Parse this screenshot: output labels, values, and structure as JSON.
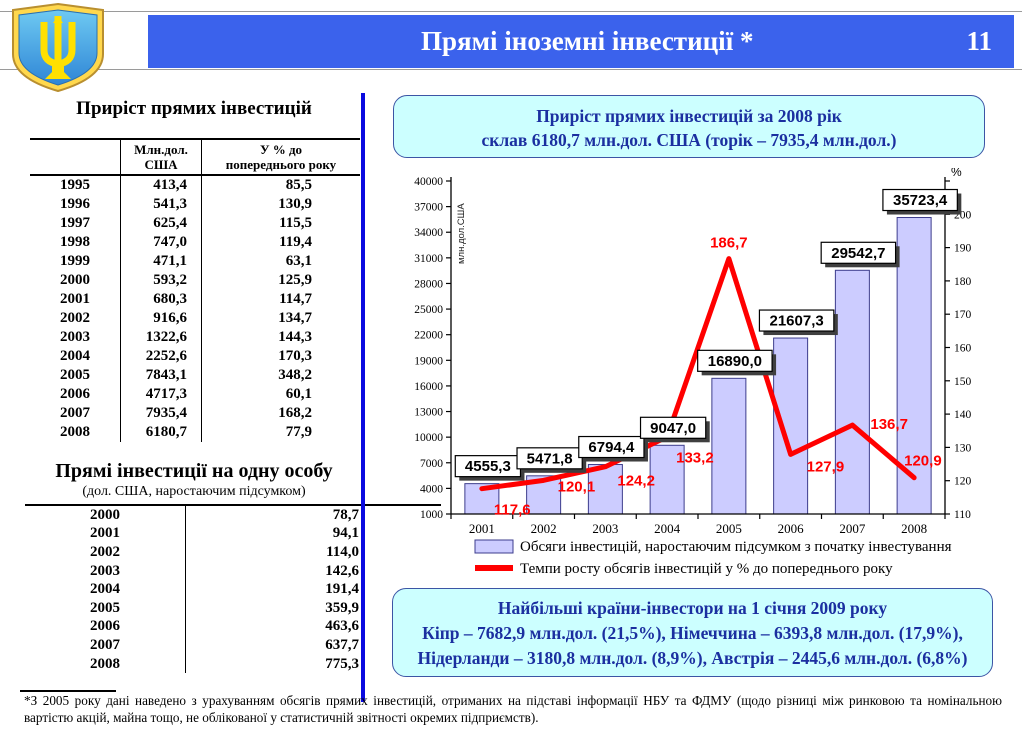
{
  "header": {
    "title": "Прямі іноземні інвестиції *",
    "page_number": "11",
    "bar_color": "#3b62ec"
  },
  "emblem": {
    "name": "coat-of-arms-of-ukraine"
  },
  "left_panel": {
    "table1": {
      "title": "Приріст прямих інвестицій",
      "col_headers": {
        "mln": [
          "Млн.дол.",
          "США"
        ],
        "pct": [
          "У % до",
          "попереднього року"
        ]
      },
      "rows": [
        [
          "1995",
          "413,4",
          "85,5"
        ],
        [
          "1996",
          "541,3",
          "130,9"
        ],
        [
          "1997",
          "625,4",
          "115,5"
        ],
        [
          "1998",
          "747,0",
          "119,4"
        ],
        [
          "1999",
          "471,1",
          "63,1"
        ],
        [
          "2000",
          "593,2",
          "125,9"
        ],
        [
          "2001",
          "680,3",
          "114,7"
        ],
        [
          "2002",
          "916,6",
          "134,7"
        ],
        [
          "2003",
          "1322,6",
          "144,3"
        ],
        [
          "2004",
          "2252,6",
          "170,3"
        ],
        [
          "2005",
          "7843,1",
          "348,2"
        ],
        [
          "2006",
          "4717,3",
          "60,1"
        ],
        [
          "2007",
          "7935,4",
          "168,2"
        ],
        [
          "2008",
          "6180,7",
          "77,9"
        ]
      ]
    },
    "table2": {
      "title": "Прямі інвестиції на одну особу",
      "subtitle": "(дол. США, наростаючим підсумком)",
      "rows": [
        [
          "2000",
          "78,7"
        ],
        [
          "2001",
          "94,1"
        ],
        [
          "2002",
          "114,0"
        ],
        [
          "2003",
          "142,6"
        ],
        [
          "2004",
          "191,4"
        ],
        [
          "2005",
          "359,9"
        ],
        [
          "2006",
          "463,6"
        ],
        [
          "2007",
          "637,7"
        ],
        [
          "2008",
          "775,3"
        ]
      ]
    }
  },
  "right_panel": {
    "info_box_top": {
      "lines": [
        "Приріст прямих інвестицій за 2008 рік",
        "склав 6180,7 млн.дол. США (торік – 7935,4 млн.дол.)"
      ]
    },
    "info_box_bottom": {
      "lines": [
        "Найбільші країни-інвестори на 1 січня 2009 року",
        "Кіпр – 7682,9 млн.дол. (21,5%), Німеччина – 6393,8 млн.дол. (17,9%),",
        "Нідерланди – 3180,8 млн.дол. (8,9%), Австрія – 2445,6 млн.дол. (6,8%)"
      ]
    }
  },
  "chart_data": {
    "type": "bar",
    "categories": [
      "2001",
      "2002",
      "2003",
      "2004",
      "2005",
      "2006",
      "2007",
      "2008"
    ],
    "series": [
      {
        "name": "Обсяги інвестицій, наростаючим підсумком з початку інвестування",
        "type": "bar",
        "axis": "left",
        "values": [
          4555.3,
          5471.8,
          6794.4,
          9047.0,
          16890.0,
          21607.3,
          29542.7,
          35723.4
        ],
        "labels": [
          "4555,3",
          "5471,8",
          "6794,4",
          "9047,0",
          "16890,0",
          "21607,3",
          "29542,7",
          "35723,4"
        ],
        "color": "#ccccff",
        "border_color": "#3c3c8c"
      },
      {
        "name": "Темпи росту обсягів інвестицій у % до попереднього року",
        "type": "line",
        "axis": "right",
        "values": [
          117.6,
          120.1,
          124.2,
          133.2,
          186.7,
          127.9,
          136.7,
          120.9
        ],
        "labels": [
          "117,6",
          "120,1",
          "124,2",
          "133,2",
          "186,7",
          "127,9",
          "136,7",
          "120,9"
        ],
        "color": "#ff0000"
      }
    ],
    "left_axis": {
      "label": "млн.дол.США",
      "min": 1000,
      "max": 40000,
      "step": 3000
    },
    "right_axis": {
      "label": "%",
      "min": 110,
      "max": 200,
      "step": 10
    },
    "grid": false,
    "legend_position": "bottom"
  },
  "footnote": {
    "text": "*З 2005 року дані наведено з урахуванням обсягів прямих інвестицій, отриманих на підставі інформації НБУ та ФДМУ (щодо різниці між ринковою та номінальною вартістю акцій, майна тощо, не облікованої у статистичній звітності окремих підприємств)."
  }
}
